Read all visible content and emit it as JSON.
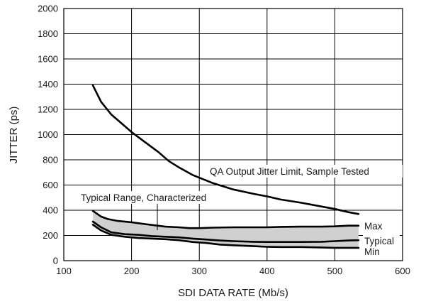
{
  "chart_data": {
    "type": "line",
    "title": "",
    "xlabel": "SDI DATA RATE (Mb/s)",
    "ylabel": "JITTER (ps)",
    "xlim": [
      100,
      600
    ],
    "ylim": [
      0,
      2000
    ],
    "xticks": [
      100,
      200,
      300,
      400,
      500,
      600
    ],
    "yticks": [
      0,
      200,
      400,
      600,
      800,
      1000,
      1200,
      1400,
      1600,
      1800,
      2000
    ],
    "grid": true,
    "legend": "none",
    "series": [
      {
        "name": "QA Output Jitter Limit, Sample Tested",
        "x": [
          143,
          155,
          170,
          185,
          200,
          220,
          240,
          255,
          270,
          290,
          320,
          350,
          380,
          400,
          420,
          450,
          480,
          500,
          520,
          535
        ],
        "y": [
          1390,
          1260,
          1160,
          1090,
          1020,
          940,
          860,
          790,
          740,
          680,
          615,
          565,
          530,
          510,
          485,
          460,
          430,
          410,
          385,
          370
        ]
      },
      {
        "name": "Max",
        "x": [
          143,
          155,
          165,
          180,
          200,
          220,
          250,
          270,
          285,
          300,
          320,
          350,
          400,
          420,
          450,
          480,
          500,
          520,
          535
        ],
        "y": [
          395,
          350,
          330,
          315,
          305,
          290,
          270,
          265,
          258,
          258,
          262,
          265,
          265,
          268,
          270,
          270,
          272,
          278,
          278
        ]
      },
      {
        "name": "Typical",
        "x": [
          143,
          155,
          170,
          190,
          210,
          230,
          250,
          270,
          290,
          310,
          330,
          350,
          380,
          400,
          420,
          450,
          480,
          500,
          520,
          535
        ],
        "y": [
          310,
          265,
          225,
          210,
          205,
          195,
          190,
          185,
          175,
          168,
          160,
          155,
          150,
          148,
          148,
          148,
          150,
          155,
          160,
          162
        ]
      },
      {
        "name": "Min",
        "x": [
          143,
          155,
          170,
          190,
          210,
          230,
          250,
          270,
          290,
          310,
          330,
          350,
          380,
          400,
          420,
          450,
          480,
          500,
          520,
          535
        ],
        "y": [
          285,
          240,
          205,
          190,
          180,
          175,
          170,
          162,
          148,
          140,
          128,
          122,
          115,
          110,
          108,
          108,
          105,
          102,
          102,
          102
        ]
      }
    ],
    "band": {
      "label": "Typical Range, Characterized",
      "upper": "Max",
      "lower": "Min",
      "color": "#d0d0d0"
    },
    "annotations": [
      {
        "text": "QA Output Jitter Limit, Sample Tested"
      },
      {
        "text": "Typical Range, Characterized"
      },
      {
        "text": "Max"
      },
      {
        "text": "Typical"
      },
      {
        "text": "Min"
      }
    ]
  }
}
